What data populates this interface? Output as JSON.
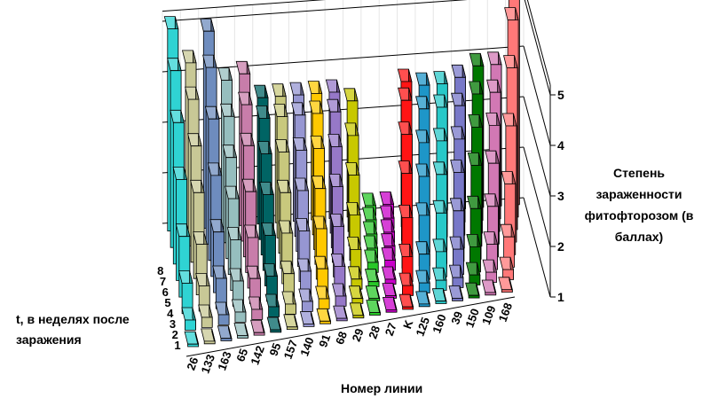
{
  "chart_data": {
    "type": "bar",
    "variant": "3d-ribbon",
    "title": "",
    "xlabel": "Номер линии",
    "ylabel": "t, в неделях после заражения",
    "zlabel": "Степень зараженности фитофторозом (в баллах)",
    "zlim": [
      1,
      5
    ],
    "z_ticks": [
      "1",
      "2",
      "3",
      "4",
      "5"
    ],
    "y_ticks": [
      "1",
      "2",
      "3",
      "4",
      "5",
      "6",
      "7",
      "8"
    ],
    "grid": true,
    "legend": "none",
    "categories": [
      "26",
      "133",
      "163",
      "65",
      "142",
      "95",
      "157",
      "140",
      "91",
      "68",
      "29",
      "28",
      "27",
      "K",
      "125",
      "160",
      "39",
      "150",
      "109",
      "168"
    ],
    "colors": [
      "#2fd3d3",
      "#c8c896",
      "#6e8cbe",
      "#96bebe",
      "#c87daa",
      "#006464",
      "#c8c87d",
      "#9696d2",
      "#ffc800",
      "#9678c8",
      "#c8c800",
      "#28c828",
      "#c800c8",
      "#ff1414",
      "#1e96c8",
      "#28c8c8",
      "#7878c8",
      "#007800",
      "#d278b4",
      "#ff7878"
    ],
    "series": [
      {
        "week": 1,
        "values": [
          1.05,
          1.05,
          1.05,
          1.05,
          1.05,
          1.05,
          1.05,
          1.05,
          1.05,
          1.05,
          1.05,
          1.05,
          1.05,
          1.05,
          1.05,
          1.05,
          1.05,
          1.05,
          1.05,
          1.05
        ]
      },
      {
        "week": 2,
        "values": [
          1.2,
          1.2,
          1.2,
          1.2,
          1.2,
          1.2,
          1.2,
          1.2,
          1.2,
          1.2,
          1.1,
          1.05,
          1.05,
          1.2,
          1.2,
          1.2,
          1.2,
          1.2,
          1.2,
          1.2
        ]
      },
      {
        "week": 3,
        "values": [
          1.6,
          1.5,
          1.6,
          1.5,
          1.5,
          1.5,
          1.5,
          1.5,
          1.5,
          1.5,
          1.2,
          1.1,
          1.1,
          1.5,
          1.5,
          1.5,
          1.5,
          1.5,
          1.5,
          1.6
        ]
      },
      {
        "week": 4,
        "values": [
          2.2,
          2.0,
          2.2,
          2.0,
          2.0,
          2.0,
          2.0,
          2.0,
          2.0,
          2.0,
          1.5,
          1.2,
          1.2,
          2.0,
          2.0,
          2.0,
          2.0,
          2.0,
          2.0,
          2.4
        ]
      },
      {
        "week": 5,
        "values": [
          3.0,
          2.7,
          3.0,
          2.5,
          2.6,
          2.5,
          2.5,
          2.5,
          2.5,
          2.5,
          1.9,
          1.2,
          1.2,
          2.6,
          2.5,
          2.5,
          2.5,
          2.6,
          2.6,
          3.3
        ]
      },
      {
        "week": 6,
        "values": [
          3.8,
          3.3,
          3.8,
          3.0,
          3.2,
          3.0,
          3.0,
          3.0,
          3.0,
          3.0,
          2.4,
          1.2,
          1.2,
          3.1,
          2.9,
          2.9,
          2.9,
          3.1,
          3.1,
          4.2
        ]
      },
      {
        "week": 7,
        "values": [
          4.5,
          3.9,
          4.5,
          3.5,
          3.7,
          3.4,
          3.4,
          3.4,
          3.4,
          3.4,
          2.9,
          1.2,
          1.2,
          3.5,
          3.3,
          3.3,
          3.3,
          3.5,
          3.5,
          4.9
        ]
      },
      {
        "week": 8,
        "values": [
          5.0,
          4.3,
          4.9,
          3.9,
          4.0,
          3.5,
          3.5,
          3.5,
          3.5,
          3.5,
          3.3,
          1.2,
          1.2,
          3.6,
          3.5,
          3.5,
          3.6,
          3.8,
          3.8,
          5.5
        ]
      }
    ]
  }
}
